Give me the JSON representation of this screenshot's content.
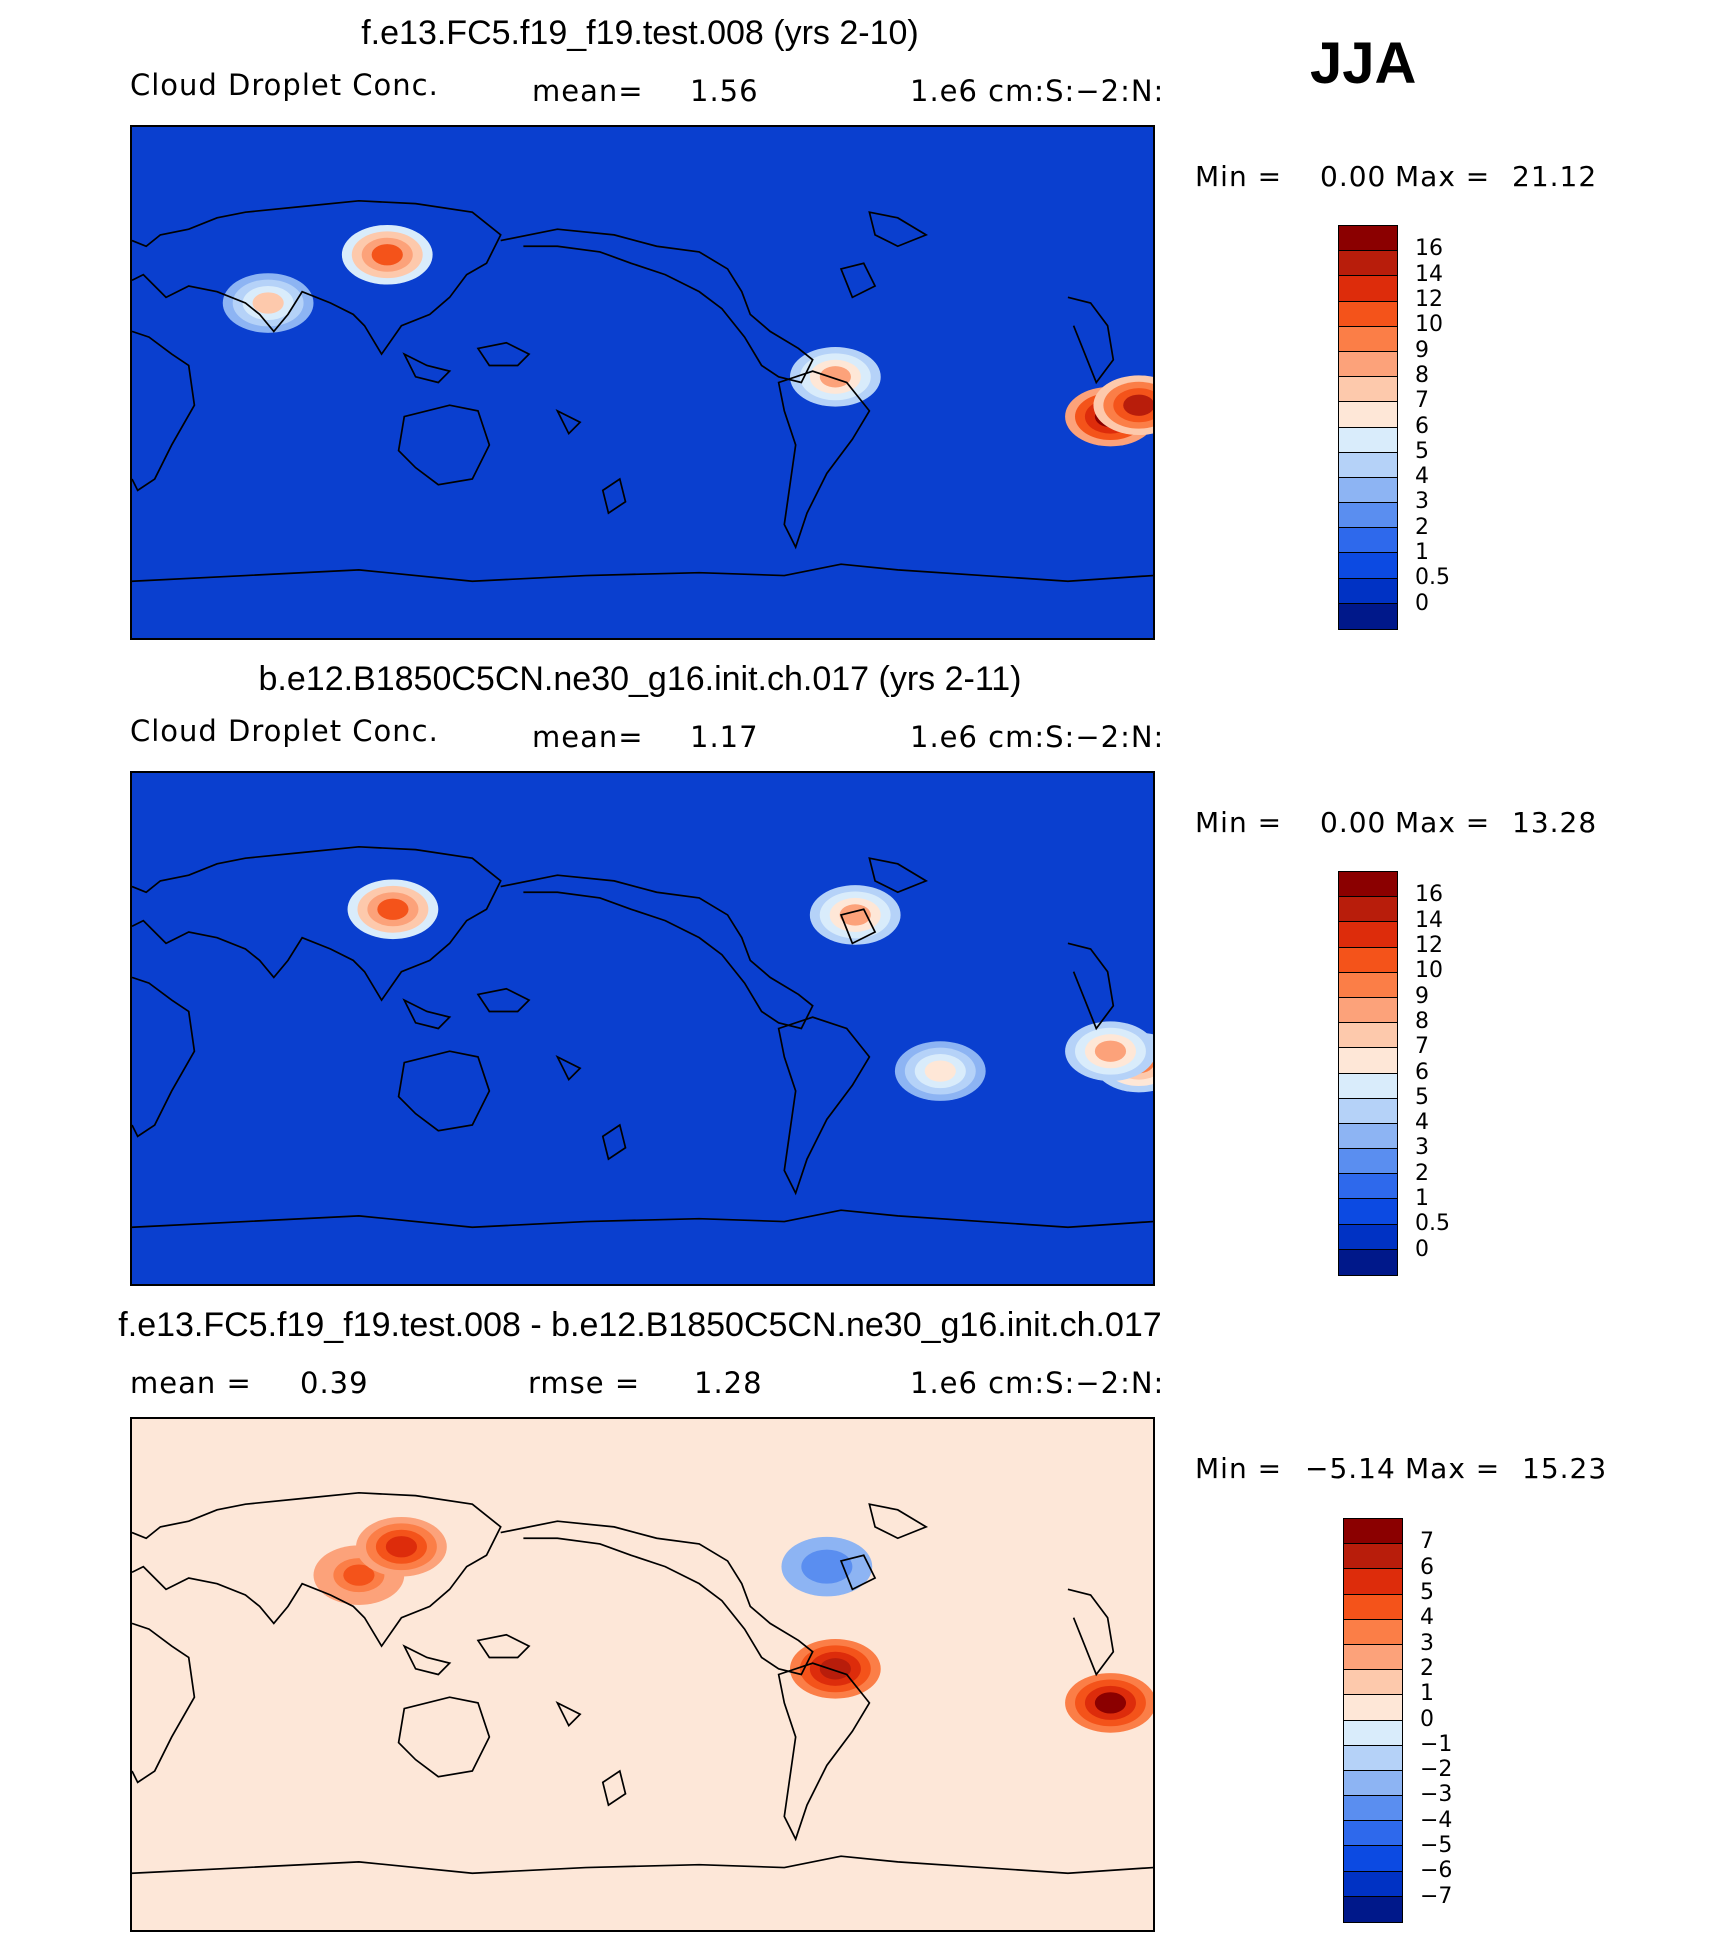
{
  "season": "JJA",
  "chart_data": [
    {
      "type": "heatmap",
      "title": "f.e13.FC5.f19_f19.test.008 (yrs 2-10)",
      "variable": "Cloud Droplet Conc.",
      "stat_text": "mean=",
      "mean": "1.56",
      "units": "1.e6 cm:S:−2:N:",
      "min_label": "Min =",
      "min": "0.00",
      "max_label": "Max =",
      "max": "21.12",
      "colorbar": {
        "levels": [
          "16",
          "14",
          "12",
          "10",
          "9",
          "8",
          "7",
          "6",
          "5",
          "4",
          "3",
          "2",
          "1",
          "0.5",
          "0"
        ],
        "colors": [
          "#8b0000",
          "#b81d0b",
          "#dd2c0b",
          "#f4531a",
          "#fb7e47",
          "#fca27a",
          "#fdc9ac",
          "#fee7d7",
          "#d9ecfb",
          "#b5d2f8",
          "#8db4f3",
          "#5a8ef0",
          "#2e69ec",
          "#0c4ae2",
          "#0032c4",
          "#00188a"
        ]
      },
      "base_color": "#0a3fcf",
      "hotspots": [
        {
          "lon": 15,
          "lat": -12,
          "value": 16
        },
        {
          "lon": 25,
          "lat": -8,
          "value": 14
        },
        {
          "lon": 120,
          "lat": 45,
          "value": 10
        },
        {
          "lon": -82,
          "lat": 2,
          "value": 8
        },
        {
          "lon": 78,
          "lat": 28,
          "value": 7
        }
      ]
    },
    {
      "type": "heatmap",
      "title": "b.e12.B1850C5CN.ne30_g16.init.ch.017 (yrs 2-11)",
      "variable": "Cloud Droplet Conc.",
      "stat_text": "mean=",
      "mean": "1.17",
      "units": "1.e6 cm:S:−2:N:",
      "min_label": "Min =",
      "min": "0.00",
      "max_label": "Max =",
      "max": "13.28",
      "colorbar": {
        "levels": [
          "16",
          "14",
          "12",
          "10",
          "9",
          "8",
          "7",
          "6",
          "5",
          "4",
          "3",
          "2",
          "1",
          "0.5",
          "0"
        ],
        "colors": [
          "#8b0000",
          "#b81d0b",
          "#dd2c0b",
          "#f4531a",
          "#fb7e47",
          "#fca27a",
          "#fdc9ac",
          "#fee7d7",
          "#d9ecfb",
          "#b5d2f8",
          "#8db4f3",
          "#5a8ef0",
          "#2e69ec",
          "#0c4ae2",
          "#0032c4",
          "#00188a"
        ]
      },
      "base_color": "#0a3fcf",
      "hotspots": [
        {
          "lon": 122,
          "lat": 42,
          "value": 10
        },
        {
          "lon": 25,
          "lat": -12,
          "value": 9
        },
        {
          "lon": 15,
          "lat": -8,
          "value": 8
        },
        {
          "lon": -75,
          "lat": 40,
          "value": 8
        },
        {
          "lon": -45,
          "lat": -15,
          "value": 6
        }
      ]
    },
    {
      "type": "heatmap",
      "title": "f.e13.FC5.f19_f19.test.008 - b.e12.B1850C5CN.ne30_g16.init.ch.017",
      "stat_text": "mean =",
      "mean": "0.39",
      "rmse_text": "rmse =",
      "rmse": "1.28",
      "units": "1.e6 cm:S:−2:N:",
      "min_label": "Min =",
      "min": "−5.14",
      "max_label": "Max =",
      "max": "15.23",
      "colorbar": {
        "levels": [
          "7",
          "6",
          "5",
          "4",
          "3",
          "2",
          "1",
          "0",
          "−1",
          "−2",
          "−3",
          "−4",
          "−5",
          "−6",
          "−7"
        ],
        "colors": [
          "#8b0000",
          "#b81d0b",
          "#dd2c0b",
          "#f4531a",
          "#fb7e47",
          "#fca27a",
          "#fdc9ac",
          "#fee7d7",
          "#d9ecfb",
          "#b5d2f8",
          "#8db4f3",
          "#5a8ef0",
          "#2e69ec",
          "#0c4ae2",
          "#0032c4",
          "#00188a"
        ]
      },
      "base_color": "#fde7d8",
      "hotspots": [
        {
          "lon": 15,
          "lat": -10,
          "value": 7
        },
        {
          "lon": -82,
          "lat": 2,
          "value": 6
        },
        {
          "lon": 110,
          "lat": 35,
          "value": 4
        },
        {
          "lon": 125,
          "lat": 45,
          "value": 5
        },
        {
          "lon": -85,
          "lat": 38,
          "value": -4
        }
      ]
    }
  ]
}
